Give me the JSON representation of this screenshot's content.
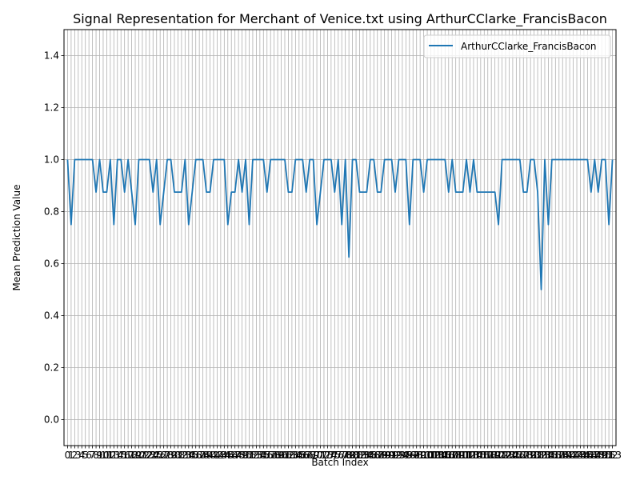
{
  "chart_data": {
    "type": "line",
    "title": "Signal Representation for Merchant of Venice.txt using ArthurCClarke_FrancisBacon",
    "xlabel": "Batch Index",
    "ylabel": "Mean Prediction Value",
    "xlim": [
      -1,
      154
    ],
    "ylim": [
      -0.1,
      1.5
    ],
    "grid": true,
    "legend_position": "upper-right",
    "series_color": "#1f77b4",
    "y_ticks": [
      0.0,
      0.2,
      0.4,
      0.6,
      0.8,
      1.0,
      1.2,
      1.4
    ],
    "x_ticks_count": 154,
    "series": [
      {
        "name": "ArthurCClarke_FrancisBacon",
        "values": [
          1.0,
          0.75,
          1.0,
          1.0,
          1.0,
          1.0,
          1.0,
          1.0,
          0.875,
          1.0,
          0.875,
          0.875,
          1.0,
          0.75,
          1.0,
          1.0,
          0.875,
          1.0,
          0.875,
          0.75,
          1.0,
          1.0,
          1.0,
          1.0,
          0.875,
          1.0,
          0.75,
          0.875,
          1.0,
          1.0,
          0.875,
          0.875,
          0.875,
          1.0,
          0.75,
          0.875,
          1.0,
          1.0,
          1.0,
          0.875,
          0.875,
          1.0,
          1.0,
          1.0,
          1.0,
          0.75,
          0.875,
          0.875,
          1.0,
          0.875,
          1.0,
          0.75,
          1.0,
          1.0,
          1.0,
          1.0,
          0.875,
          1.0,
          1.0,
          1.0,
          1.0,
          1.0,
          0.875,
          0.875,
          1.0,
          1.0,
          1.0,
          0.875,
          1.0,
          1.0,
          0.75,
          0.875,
          1.0,
          1.0,
          1.0,
          0.875,
          1.0,
          0.75,
          1.0,
          0.625,
          1.0,
          1.0,
          0.875,
          0.875,
          0.875,
          1.0,
          1.0,
          0.875,
          0.875,
          1.0,
          1.0,
          1.0,
          0.875,
          1.0,
          1.0,
          1.0,
          0.75,
          1.0,
          1.0,
          1.0,
          0.875,
          1.0,
          1.0,
          1.0,
          1.0,
          1.0,
          1.0,
          0.875,
          1.0,
          0.875,
          0.875,
          0.875,
          1.0,
          0.875,
          1.0,
          0.875,
          0.875,
          0.875,
          0.875,
          0.875,
          0.875,
          0.75,
          1.0,
          1.0,
          1.0,
          1.0,
          1.0,
          1.0,
          0.875,
          0.875,
          1.0,
          1.0,
          0.875,
          0.5,
          1.0,
          0.75,
          1.0,
          1.0,
          1.0,
          1.0,
          1.0,
          1.0,
          1.0,
          1.0,
          1.0,
          1.0,
          1.0,
          0.875,
          1.0,
          0.875,
          1.0,
          1.0,
          0.75,
          1.0
        ]
      }
    ]
  }
}
